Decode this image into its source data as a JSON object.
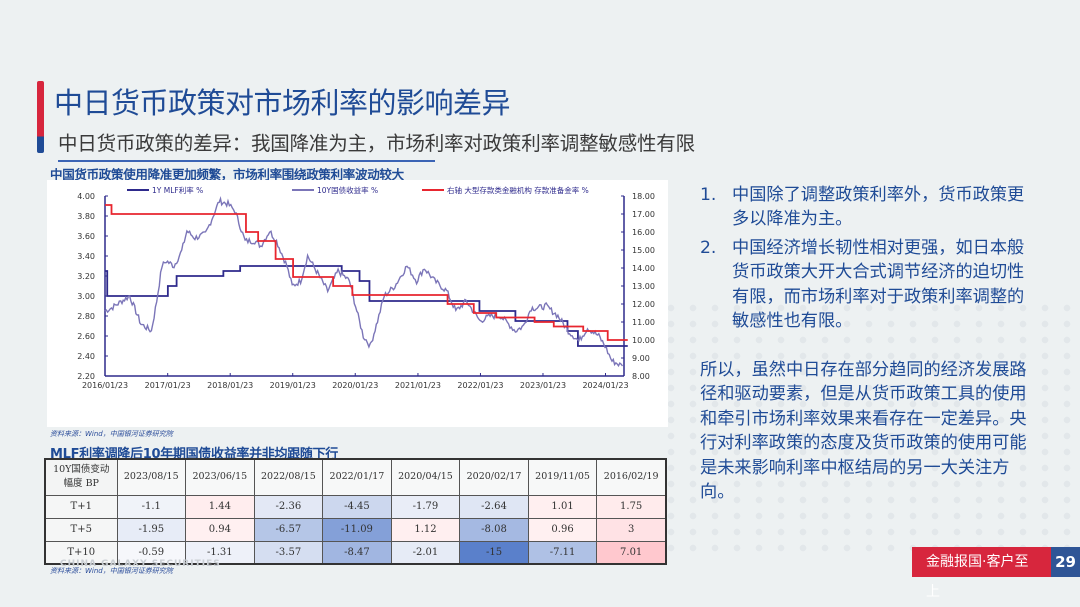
{
  "slide": {
    "title": "中日货币政策对市场利率的影响差异",
    "subtitle": "中日货币政策的差异：我国降准为主，市场利率对政策利率调整敏感性有限",
    "page_number": "29",
    "footer_slogan": "金融报国·客户至上",
    "colors": {
      "title_blue": "#1f4b96",
      "accent_red": "#d7263d",
      "page_blue": "#2f5596"
    }
  },
  "chart": {
    "title": "中国货币政策使用降准更加频繁，市场利率围绕政策利率波动较大",
    "source": "资料来源：Wind，中国银河证券研究院"
  },
  "chart_data": {
    "type": "line",
    "title": "中国货币政策使用降准更加频繁，市场利率围绕政策利率波动较大",
    "xlabel": "",
    "ylabel_left": "%",
    "ylabel_right": "%",
    "x_ticks": [
      "2016/01/23",
      "2017/01/23",
      "2018/01/23",
      "2019/01/23",
      "2020/01/23",
      "2021/01/23",
      "2022/01/23",
      "2023/01/23",
      "2024/01/23"
    ],
    "y_left_ticks": [
      "4.00",
      "3.80",
      "3.60",
      "3.40",
      "3.20",
      "3.00",
      "2.80",
      "2.60",
      "2.40",
      "2.20"
    ],
    "y_right_ticks": [
      "18.00",
      "17.00",
      "16.00",
      "15.00",
      "14.00",
      "13.00",
      "12.00",
      "11.00",
      "10.00",
      "9.00",
      "8.00"
    ],
    "ylim_left": [
      2.2,
      4.0
    ],
    "ylim_right": [
      8.0,
      18.0
    ],
    "grid": false,
    "legend_position": "top",
    "series": [
      {
        "name": "1Y MLF利率 %",
        "axis": "left",
        "color": "#2e2a8c",
        "style": "step",
        "points": [
          [
            "2016-01-23",
            3.25
          ],
          [
            "2016-02-05",
            3.0
          ],
          [
            "2017-01-24",
            3.1
          ],
          [
            "2017-03-16",
            3.2
          ],
          [
            "2017-12-14",
            3.25
          ],
          [
            "2018-03-22",
            3.3
          ],
          [
            "2019-11-05",
            3.25
          ],
          [
            "2020-02-17",
            3.15
          ],
          [
            "2020-04-15",
            2.95
          ],
          [
            "2022-01-17",
            2.85
          ],
          [
            "2022-08-15",
            2.75
          ],
          [
            "2023-06-15",
            2.65
          ],
          [
            "2023-08-15",
            2.5
          ],
          [
            "2024-06-01",
            2.5
          ]
        ]
      },
      {
        "name": "10Y国债收益率 %",
        "axis": "left",
        "color": "#7b75b8",
        "style": "line",
        "points": [
          [
            "2016-01-23",
            2.85
          ],
          [
            "2016-03-01",
            2.88
          ],
          [
            "2016-05-01",
            2.95
          ],
          [
            "2016-06-15",
            3.0
          ],
          [
            "2016-08-20",
            2.72
          ],
          [
            "2016-10-20",
            2.65
          ],
          [
            "2016-11-20",
            2.95
          ],
          [
            "2016-12-20",
            3.3
          ],
          [
            "2017-01-15",
            3.35
          ],
          [
            "2017-03-01",
            3.3
          ],
          [
            "2017-04-15",
            3.45
          ],
          [
            "2017-05-15",
            3.65
          ],
          [
            "2017-07-01",
            3.58
          ],
          [
            "2017-09-01",
            3.62
          ],
          [
            "2017-10-15",
            3.8
          ],
          [
            "2017-11-20",
            3.95
          ],
          [
            "2018-01-10",
            3.92
          ],
          [
            "2018-02-20",
            3.85
          ],
          [
            "2018-04-20",
            3.55
          ],
          [
            "2018-06-15",
            3.55
          ],
          [
            "2018-07-20",
            3.5
          ],
          [
            "2018-09-10",
            3.65
          ],
          [
            "2018-10-20",
            3.55
          ],
          [
            "2018-12-20",
            3.3
          ],
          [
            "2019-01-20",
            3.1
          ],
          [
            "2019-03-10",
            3.15
          ],
          [
            "2019-04-20",
            3.4
          ],
          [
            "2019-06-10",
            3.25
          ],
          [
            "2019-08-15",
            3.05
          ],
          [
            "2019-10-15",
            3.25
          ],
          [
            "2019-12-20",
            3.15
          ],
          [
            "2020-02-01",
            2.85
          ],
          [
            "2020-03-10",
            2.6
          ],
          [
            "2020-04-20",
            2.5
          ],
          [
            "2020-06-01",
            2.75
          ],
          [
            "2020-07-10",
            3.0
          ],
          [
            "2020-09-10",
            3.1
          ],
          [
            "2020-11-20",
            3.3
          ],
          [
            "2021-01-15",
            3.15
          ],
          [
            "2021-03-01",
            3.28
          ],
          [
            "2021-05-01",
            3.15
          ],
          [
            "2021-07-10",
            3.05
          ],
          [
            "2021-09-01",
            2.85
          ],
          [
            "2021-11-01",
            2.95
          ],
          [
            "2022-01-20",
            2.75
          ],
          [
            "2022-03-20",
            2.8
          ],
          [
            "2022-05-20",
            2.8
          ],
          [
            "2022-08-15",
            2.65
          ],
          [
            "2022-10-01",
            2.7
          ],
          [
            "2022-11-15",
            2.88
          ],
          [
            "2022-12-20",
            2.88
          ],
          [
            "2023-02-10",
            2.9
          ],
          [
            "2023-04-20",
            2.8
          ],
          [
            "2023-06-20",
            2.65
          ],
          [
            "2023-08-20",
            2.55
          ],
          [
            "2023-10-10",
            2.68
          ],
          [
            "2023-12-15",
            2.6
          ],
          [
            "2024-01-20",
            2.5
          ],
          [
            "2024-03-01",
            2.35
          ],
          [
            "2024-05-01",
            2.3
          ]
        ]
      },
      {
        "name": "右轴 大型存款类金融机构 存款准备金率 %",
        "axis": "right",
        "color": "#e8262f",
        "style": "step",
        "points": [
          [
            "2016-01-23",
            17.5
          ],
          [
            "2016-03-01",
            17.0
          ],
          [
            "2018-04-25",
            16.0
          ],
          [
            "2018-07-05",
            15.5
          ],
          [
            "2018-10-15",
            14.5
          ],
          [
            "2019-01-25",
            13.5
          ],
          [
            "2019-09-16",
            13.0
          ],
          [
            "2020-01-06",
            12.5
          ],
          [
            "2021-07-15",
            12.0
          ],
          [
            "2021-12-15",
            11.5
          ],
          [
            "2022-04-25",
            11.25
          ],
          [
            "2022-12-05",
            11.0
          ],
          [
            "2023-03-27",
            10.75
          ],
          [
            "2023-09-15",
            10.5
          ],
          [
            "2024-02-05",
            10.0
          ],
          [
            "2024-06-01",
            10.0
          ]
        ]
      }
    ]
  },
  "table": {
    "title": "MLF利率调降后10年期国债收益率并非均跟随下行",
    "corner_header_line1": "10Y国债变动",
    "corner_header_line2": "幅度 BP",
    "columns": [
      "2023/08/15",
      "2023/06/15",
      "2022/08/15",
      "2022/01/17",
      "2020/04/15",
      "2020/02/17",
      "2019/11/05",
      "2016/02/19"
    ],
    "rows": [
      {
        "label": "T+1",
        "values": [
          "-1.1",
          "1.44",
          "-2.36",
          "-4.45",
          "-1.79",
          "-2.64",
          "1.01",
          "1.75"
        ]
      },
      {
        "label": "T+5",
        "values": [
          "-1.95",
          "0.94",
          "-6.57",
          "-11.09",
          "1.12",
          "-8.08",
          "0.96",
          "3"
        ]
      },
      {
        "label": "T+10",
        "values": [
          "-0.59",
          "-1.31",
          "-3.57",
          "-8.47",
          "-2.01",
          "-15",
          "-7.11",
          "7.01"
        ]
      }
    ],
    "source": "资料来源：Wind，中国银河证券研究院",
    "watermark": "CHINA GALAXY SECURITIES"
  },
  "points": [
    {
      "num": "1.",
      "text": "中国除了调整政策利率外，货币政策更多以降准为主。"
    },
    {
      "num": "2.",
      "text": "中国经济增长韧性相对更强，如日本般货币政策大开大合式调节经济的迫切性有限，而市场利率对于政策利率调整的敏感性也有限。"
    }
  ],
  "summary": "所以，虽然中日存在部分趋同的经济发展路径和驱动要素，但是从货币政策工具的使用和牵引市场利率效果来看存在一定差异。央行对利率政策的态度及货币政策的使用可能是未来影响利率中枢结局的另一大关注方向。"
}
